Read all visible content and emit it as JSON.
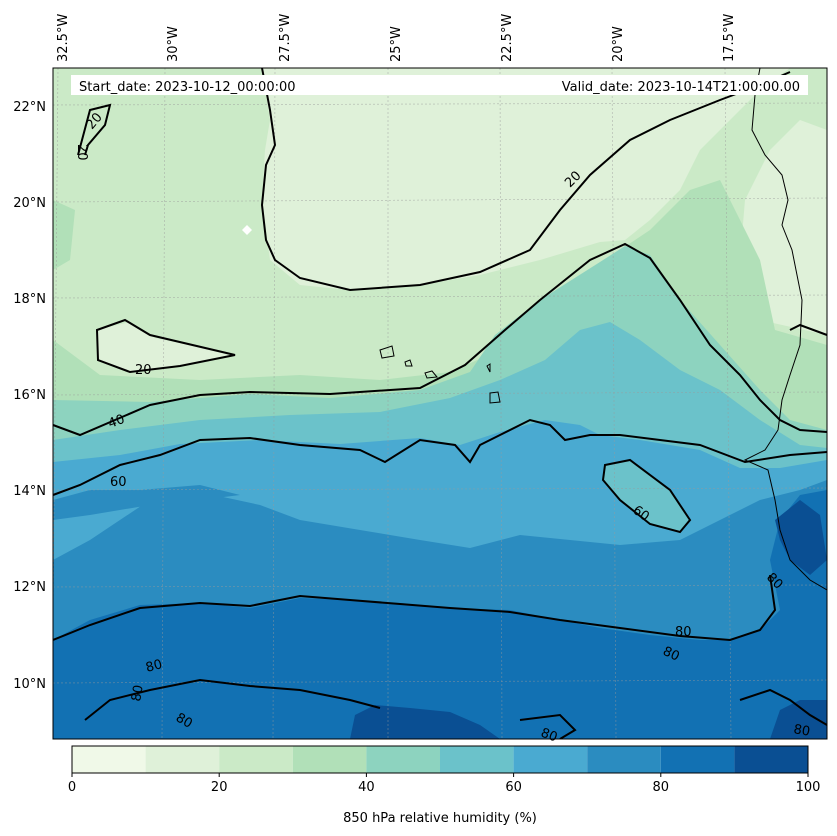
{
  "header": {
    "start_date": "Start_date: 2023-10-12_00:00:00",
    "valid_date": "Valid_date: 2023-10-14T21:00:00.00"
  },
  "longitude_labels": [
    "32.5°W",
    "30°W",
    "27.5°W",
    "25°W",
    "22.5°W",
    "20°W",
    "17.5°W"
  ],
  "latitude_labels": [
    "22°N",
    "20°N",
    "18°N",
    "16°N",
    "14°N",
    "12°N",
    "10°N"
  ],
  "contour_labels": [
    "20",
    "20",
    "20",
    "20",
    "40",
    "60",
    "60",
    "80",
    "80",
    "80",
    "80",
    "80",
    "80",
    "80",
    "80"
  ],
  "colorbar": {
    "label": "850 hPa relative humidity (%)",
    "tick_labels": [
      "0",
      "20",
      "40",
      "60",
      "80",
      "100"
    ],
    "levels": [
      0,
      10,
      20,
      30,
      40,
      50,
      60,
      70,
      80,
      90,
      100
    ],
    "colors": [
      "#f0f9e8",
      "#dff1d9",
      "#cbeac7",
      "#b1e0b8",
      "#8dd3bf",
      "#6bc2ca",
      "#4aaad1",
      "#2b8cc0",
      "#1271b3",
      "#0a4f93"
    ]
  },
  "fill_colors": {
    "rh_10_20": "#dff1d9",
    "rh_20_30": "#cbeac7",
    "rh_30_40": "#b1e0b8",
    "rh_40_50": "#8dd3bf",
    "rh_50_60": "#6bc2ca",
    "rh_60_70": "#4aaad1",
    "rh_70_80": "#2b8cc0",
    "rh_80_90": "#1271b3",
    "rh_90_100": "#0a4f93"
  }
}
